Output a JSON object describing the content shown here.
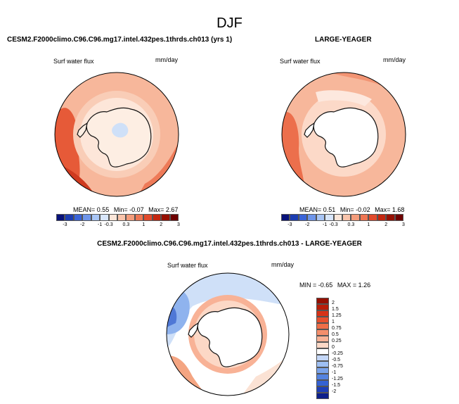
{
  "title": "DJF",
  "panels": [
    {
      "title": "CESM2.F2000climo.C96.C96.mg17.intel.432pes.1thrds.ch013 (yrs 1)",
      "variable": "Surf water flux",
      "units": "mm/day",
      "stats": {
        "mean_label": "MEAN=",
        "mean": "0.55",
        "min_label": "Min=",
        "min": "-0.07",
        "max_label": "Max=",
        "max": "2.67"
      }
    },
    {
      "title": "LARGE-YEAGER",
      "variable": "Surf water flux",
      "units": "mm/day",
      "stats": {
        "mean_label": "MEAN=",
        "mean": "0.51",
        "min_label": "Min=",
        "min": "-0.02",
        "max_label": "Max=",
        "max": "1.68"
      }
    },
    {
      "title": "CESM2.F2000climo.C96.C96.mg17.intel.432pes.1thrds.ch013 - LARGE-YEAGER",
      "variable": "Surf water flux",
      "units": "mm/day",
      "stats": {
        "min_label": "MIN =",
        "min": "-0.65",
        "max_label": "MAX =",
        "max": "1.26"
      }
    }
  ],
  "colorbar_horizontal": {
    "labels": [
      "-3",
      "-2",
      "-1",
      "-0.3",
      "0.3",
      "1",
      "2",
      "3"
    ],
    "colors": [
      "#08127a",
      "#1c3db2",
      "#3a64d8",
      "#6e95ea",
      "#a8c5f5",
      "#d8e6fb",
      "#fbe6d9",
      "#f9c4ab",
      "#f49c7b",
      "#ee7552",
      "#e14a2c",
      "#c4260f",
      "#961002",
      "#6e0000"
    ]
  },
  "colorbar_vertical": {
    "labels": [
      "2",
      "1.5",
      "1.25",
      "1",
      "0.75",
      "0.5",
      "0.25",
      "0",
      "-0.25",
      "-0.5",
      "-0.75",
      "-1",
      "-1.25",
      "-1.5",
      "-2"
    ],
    "colors": [
      "#961002",
      "#b81e0a",
      "#d63318",
      "#e8502e",
      "#ef6e48",
      "#f48f6c",
      "#f8b296",
      "#fcd8c6",
      "#ffffff",
      "#c4d7f7",
      "#9ebff2",
      "#7aa3ea",
      "#5483e0",
      "#3562d2",
      "#1f3fb6",
      "#0e1f8a"
    ]
  },
  "colors": {
    "antarctica": "#ffffff",
    "coastline": "#111111",
    "ocean_light": "#fbe2d4",
    "ocean_mid": "#f4a582",
    "ocean_strong": "#e45c3a",
    "ocean_deep": "#c8361c",
    "diff_neg_light": "#cfe0f8",
    "diff_neg": "#8fb3ee",
    "diff_neg_strong": "#4f78d6"
  }
}
